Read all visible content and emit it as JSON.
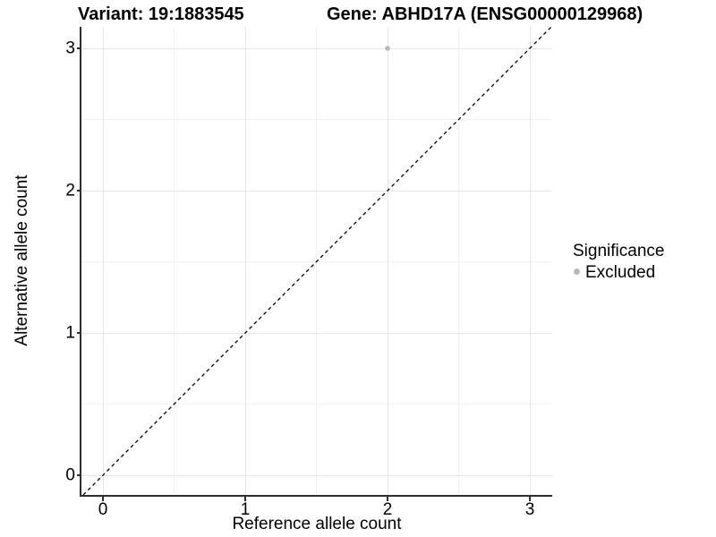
{
  "title": {
    "variant": "Variant: 19:1883545",
    "gene": "Gene: ABHD17A (ENSG00000129968)"
  },
  "chart_data": {
    "type": "scatter",
    "title": "Variant: 19:1883545    Gene: ABHD17A (ENSG00000129968)",
    "xlabel": "Reference allele count",
    "ylabel": "Alternative allele count",
    "xlim": [
      -0.15,
      3.15
    ],
    "ylim": [
      -0.15,
      3.15
    ],
    "x_ticks": [
      0,
      1,
      2,
      3
    ],
    "y_ticks": [
      0,
      1,
      2,
      3
    ],
    "x_minor_ticks": [
      0.5,
      1.5,
      2.5
    ],
    "y_minor_ticks": [
      0.5,
      1.5,
      2.5
    ],
    "grid": true,
    "points": [
      {
        "x": 2,
        "y": 3,
        "series": "Excluded"
      }
    ],
    "identity_line": {
      "style": "dashed",
      "slope": 1,
      "intercept": 0,
      "color": "#000000"
    },
    "legend": {
      "title": "Significance",
      "position": "right",
      "entries": [
        {
          "label": "Excluded",
          "color": "#b8b8b8"
        }
      ]
    }
  },
  "colors": {
    "axis_line": "#2e2e2e",
    "grid_major": "#e6e6e6",
    "grid_minor": "#f1f1f1",
    "excluded_point": "#b8b8b8",
    "text": "#000000",
    "background": "#ffffff"
  }
}
